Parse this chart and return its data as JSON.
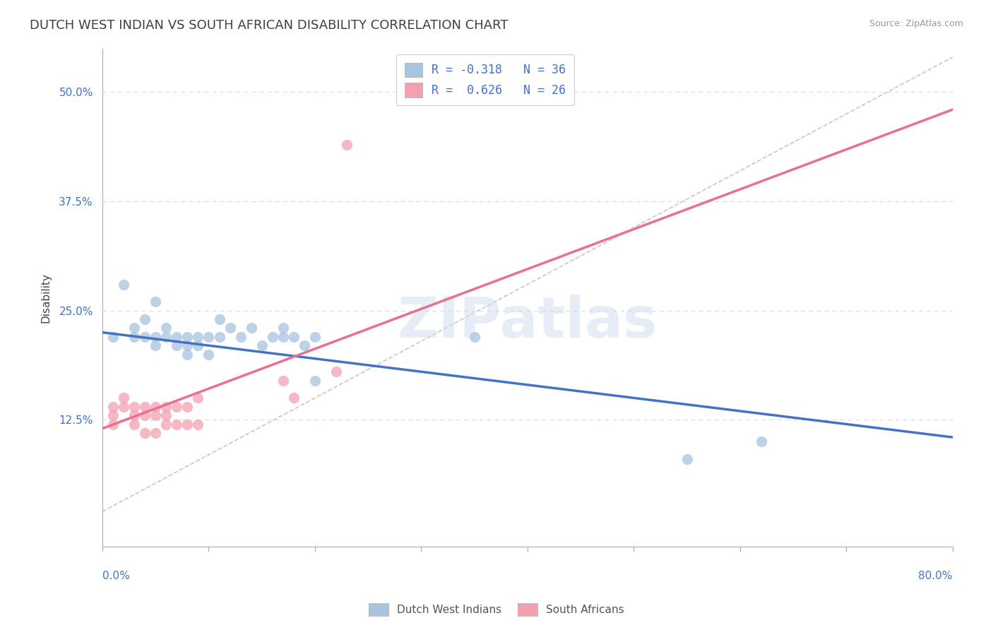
{
  "title": "DUTCH WEST INDIAN VS SOUTH AFRICAN DISABILITY CORRELATION CHART",
  "source": "Source: ZipAtlas.com",
  "ylabel": "Disability",
  "xlim": [
    0.0,
    80.0
  ],
  "ylim": [
    -2.0,
    55.0
  ],
  "yticks": [
    12.5,
    25.0,
    37.5,
    50.0
  ],
  "ytick_labels": [
    "12.5%",
    "25.0%",
    "37.5%",
    "50.0%"
  ],
  "blue_color": "#a8c4e0",
  "pink_color": "#f4a0b0",
  "blue_line_color": "#4472c4",
  "pink_line_color": "#e87090",
  "diag_line_color": "#c8c8c8",
  "legend_blue_label": "R = -0.318   N = 36",
  "legend_pink_label": "R =  0.626   N = 26",
  "blue_scatter_x": [
    1,
    2,
    3,
    3,
    4,
    4,
    5,
    5,
    5,
    6,
    6,
    7,
    7,
    8,
    8,
    8,
    9,
    9,
    10,
    10,
    11,
    11,
    12,
    13,
    14,
    15,
    16,
    17,
    17,
    18,
    19,
    20,
    20,
    35,
    55,
    62
  ],
  "blue_scatter_y": [
    22,
    28,
    23,
    22,
    24,
    22,
    22,
    21,
    26,
    23,
    22,
    22,
    21,
    22,
    21,
    20,
    22,
    21,
    22,
    20,
    24,
    22,
    23,
    22,
    23,
    21,
    22,
    23,
    22,
    22,
    21,
    17,
    22,
    22,
    8,
    10
  ],
  "pink_scatter_x": [
    1,
    1,
    1,
    2,
    2,
    3,
    3,
    3,
    4,
    4,
    4,
    5,
    5,
    5,
    6,
    6,
    6,
    7,
    7,
    8,
    8,
    9,
    9,
    17,
    18,
    22
  ],
  "pink_scatter_y": [
    14,
    13,
    12,
    15,
    14,
    14,
    13,
    12,
    14,
    13,
    11,
    14,
    13,
    11,
    14,
    13,
    12,
    14,
    12,
    14,
    12,
    15,
    12,
    17,
    15,
    18
  ],
  "pink_outlier_x": [
    23
  ],
  "pink_outlier_y": [
    44
  ],
  "blue_trend_x0": 0,
  "blue_trend_y0": 22.5,
  "blue_trend_x1": 80,
  "blue_trend_y1": 10.5,
  "pink_trend_x0": 0,
  "pink_trend_y0": 11.5,
  "pink_trend_x1": 80,
  "pink_trend_y1": 48.0,
  "diag_x0": 0,
  "diag_y0": 2,
  "diag_x1": 80,
  "diag_y1": 54,
  "watermark_text": "ZIPatlas",
  "background_color": "#ffffff",
  "grid_color": "#d4dce8",
  "title_color": "#404040",
  "tick_label_color": "#4472c4",
  "ylabel_color": "#444444"
}
